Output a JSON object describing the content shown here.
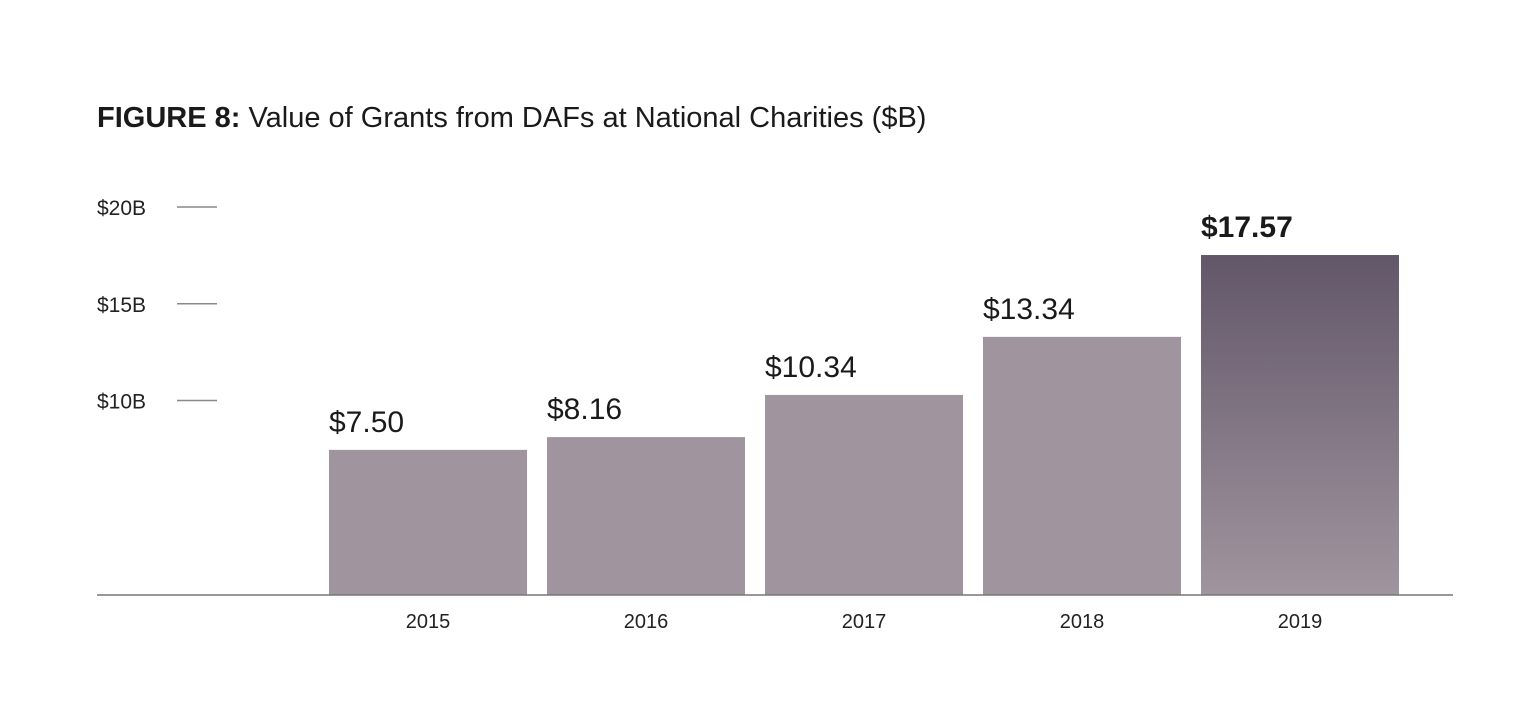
{
  "chart_data": {
    "type": "bar",
    "title_prefix": "FIGURE 8:",
    "title": "Value of Grants from DAFs at National Charities ($B)",
    "categories": [
      "2015",
      "2016",
      "2017",
      "2018",
      "2019"
    ],
    "values": [
      7.5,
      8.16,
      10.34,
      13.34,
      17.57
    ],
    "data_labels": [
      "$7.50",
      "$8.16",
      "$10.34",
      "$13.34",
      "$17.57"
    ],
    "highlight_index": 4,
    "y_ticks": [
      {
        "value": 20,
        "label": "$20B"
      },
      {
        "value": 15,
        "label": "$15B"
      },
      {
        "value": 10,
        "label": "$10B"
      }
    ],
    "ylim": [
      0,
      20
    ],
    "xlabel": "",
    "ylabel": "",
    "grid": false,
    "colors": {
      "bar": "#a0959e",
      "highlight_top": "#625769",
      "highlight_bottom": "#a0959e",
      "axis": "#777777"
    }
  }
}
